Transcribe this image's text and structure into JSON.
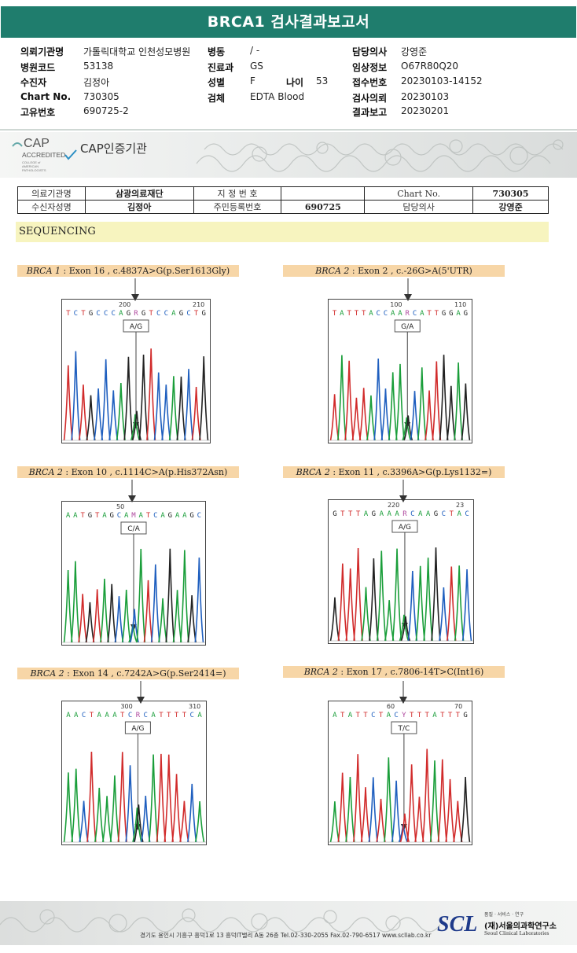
{
  "report_title": "BRCA1 검사결과보고서",
  "info": {
    "col1": [
      {
        "label": "의뢰기관명",
        "value": "가톨릭대학교 인천성모병원"
      },
      {
        "label": "병원코드",
        "value": "53138"
      },
      {
        "label": "수진자",
        "value": "김정아"
      },
      {
        "label": "Chart No.",
        "value": "730305"
      },
      {
        "label": "고유번호",
        "value": "690725-2"
      }
    ],
    "col2": [
      {
        "label": "병동",
        "value": "/ -"
      },
      {
        "label": "진료과",
        "value": "GS"
      },
      {
        "label": "성별",
        "value": "F"
      },
      {
        "label": "검체",
        "value": "EDTA Blood"
      }
    ],
    "age_label": "나이",
    "age_value": "53",
    "col3": [
      {
        "label": "담당의사",
        "value": "강영준"
      },
      {
        "label": "임상정보",
        "value": "O67R80Q20"
      },
      {
        "label": "접수번호",
        "value": "20230103-14152"
      },
      {
        "label": "검사의뢰",
        "value": "20230103"
      },
      {
        "label": "결과보고",
        "value": "20230201"
      }
    ]
  },
  "cap": {
    "logo_text": "CAP",
    "accredited": "ACCREDITED",
    "college": "COLLEGE of AMERICAN PATHOLOGISTS",
    "label": "CAP인증기관"
  },
  "patient_table": {
    "r1": [
      "의료기관명",
      "삼광의료재단",
      "지 정 번 호",
      "",
      "Chart No.",
      "730305"
    ],
    "r2": [
      "수신자성명",
      "김정아",
      "주민등록번호",
      "690725",
      "담당의사",
      "강영준"
    ]
  },
  "section_title": "SEQUENCING",
  "panels": [
    {
      "gene": "BRCA 1",
      "desc": " : Exon 16 , c.4837A>G(p.Ser1613Gly)",
      "pos1": "200",
      "pos2": "210",
      "seq": "TCTGCCCAGRGTCCAGCTG",
      "call": "A/G"
    },
    {
      "gene": "BRCA 2",
      "desc": " : Exon 2 , c.-26G>A(5'UTR)",
      "pos1": "100",
      "pos2": "110",
      "seq": "TATTTACCAARCATTGGAG",
      "call": "G/A"
    },
    {
      "gene": "BRCA 2",
      "desc": " : Exon 10 , c.1114C>A(p.His372Asn)",
      "pos1": "50",
      "pos2": "",
      "seq": "AATGTAGCAMATCAGAAGC",
      "call": "C/A"
    },
    {
      "gene": "BRCA 2",
      "desc": " : Exon 11 , c.3396A>G(p.Lys1132=)",
      "pos1": "220",
      "pos2": "23",
      "seq": "GTTTAGAAARCAAGCTAC",
      "call": "A/G"
    },
    {
      "gene": "BRCA 2",
      "desc": " : Exon 14 , c.7242A>G(p.Ser2414=)",
      "pos1": "300",
      "pos2": "310",
      "seq": "AACTAAATCRCATTTTCA",
      "call": "A/G"
    },
    {
      "gene": "BRCA 2",
      "desc": " : Exon 17 , c.7806-14T>C(Int16)",
      "pos1": "60",
      "pos2": "70",
      "seq": "ATATTCTACYTTTATTTG",
      "call": "T/C"
    }
  ],
  "footer": {
    "address": "경기도 용인시 기흥구 흥덕1로 13 흥덕IT밸리 A동 26층  Tel.02-330-2055  Fax.02-790-6517  www.scllab.co.kr",
    "scl": "SCL",
    "motto": "품질 · 서비스 · 연구",
    "org_kr": "(재)서울의과학연구소",
    "org_en": "Seoul Clinical Laboratories"
  }
}
